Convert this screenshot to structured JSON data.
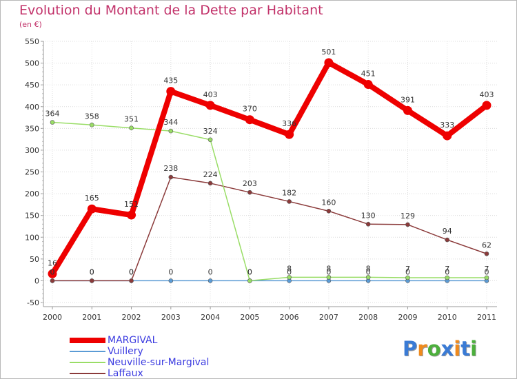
{
  "title": "Evolution du Montant de la Dette par Habitant",
  "subtitle": "(en €)",
  "logo": {
    "text": "Proxiti",
    "colors": [
      "#3a7bd5",
      "#f08a1c",
      "#4caf3c",
      "#3a7bd5",
      "#f08a1c",
      "#3a7bd5",
      "#4caf3c"
    ]
  },
  "chart_data": {
    "type": "line",
    "title": "Evolution du Montant de la Dette par Habitant",
    "subtitle": "(en €)",
    "categories": [
      "2000",
      "2001",
      "2002",
      "2003",
      "2004",
      "2005",
      "2006",
      "2007",
      "2008",
      "2009",
      "2010",
      "2011"
    ],
    "ylim": [
      -50,
      550
    ],
    "yticks": [
      -50,
      0,
      50,
      100,
      150,
      200,
      250,
      300,
      350,
      400,
      450,
      500,
      550
    ],
    "grid": true,
    "legend_position": "bottom-left",
    "series": [
      {
        "name": "MARGIVAL",
        "color": "#ee0000",
        "values": [
          16,
          165,
          151,
          435,
          403,
          370,
          336,
          501,
          451,
          391,
          333,
          403
        ],
        "labels": [
          "16",
          "165",
          "151",
          "435",
          "403",
          "370",
          "336",
          "501",
          "451",
          "391",
          "333",
          "403"
        ]
      },
      {
        "name": "Vuillery",
        "color": "#5b9bd5",
        "values": [
          0,
          0,
          0,
          0,
          0,
          0,
          0,
          0,
          0,
          0,
          0,
          0
        ],
        "labels": [
          "0",
          "0",
          "0",
          "0",
          "0",
          "0",
          "0",
          "0",
          "0",
          "0",
          "0",
          "0"
        ]
      },
      {
        "name": "Neuville-sur-Margival",
        "color": "#99dd66",
        "values": [
          364,
          358,
          351,
          344,
          324,
          0,
          8,
          8,
          8,
          7,
          7,
          7
        ],
        "labels": [
          "364",
          "358",
          "351",
          "344",
          "324",
          "0",
          "8",
          "8",
          "8",
          "7",
          "7",
          "7"
        ]
      },
      {
        "name": "Laffaux",
        "color": "#8b3a3a",
        "values": [
          0,
          0,
          0,
          238,
          224,
          203,
          182,
          160,
          130,
          129,
          94,
          62
        ],
        "labels": [
          "0",
          "0",
          "0",
          "238",
          "224",
          "203",
          "182",
          "160",
          "130",
          "129",
          "94",
          "62"
        ]
      }
    ]
  }
}
